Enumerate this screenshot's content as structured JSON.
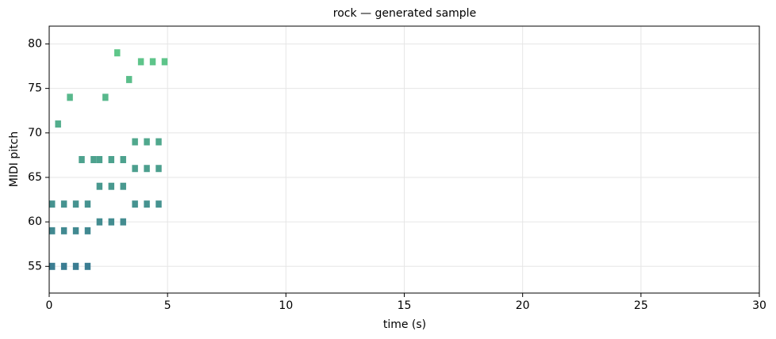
{
  "chart_data": {
    "type": "piano-roll",
    "title": "rock — generated sample",
    "x_label": "time (s)",
    "y_label": "MIDI pitch",
    "xlim": [
      0,
      30
    ],
    "ylim": [
      52,
      82
    ],
    "xticks": [
      0,
      5,
      10,
      15,
      20,
      25,
      30
    ],
    "yticks": [
      55,
      60,
      65,
      70,
      75,
      80
    ],
    "grid": true,
    "cmap": [
      "#3b7d92",
      "#5fc78a"
    ],
    "notes": [
      {
        "start": 0,
        "duration": 0.25,
        "pitch": 55
      },
      {
        "start": 0.5,
        "duration": 0.25,
        "pitch": 55
      },
      {
        "start": 1.0,
        "duration": 0.25,
        "pitch": 55
      },
      {
        "start": 1.5,
        "duration": 0.25,
        "pitch": 55
      },
      {
        "start": 0,
        "duration": 0.25,
        "pitch": 59
      },
      {
        "start": 0.5,
        "duration": 0.25,
        "pitch": 59
      },
      {
        "start": 1.0,
        "duration": 0.25,
        "pitch": 59
      },
      {
        "start": 1.5,
        "duration": 0.25,
        "pitch": 59
      },
      {
        "start": 0,
        "duration": 0.25,
        "pitch": 62
      },
      {
        "start": 0.5,
        "duration": 0.25,
        "pitch": 62
      },
      {
        "start": 1.0,
        "duration": 0.25,
        "pitch": 62
      },
      {
        "start": 1.5,
        "duration": 0.25,
        "pitch": 62
      },
      {
        "start": 2.0,
        "duration": 0.25,
        "pitch": 60
      },
      {
        "start": 2.5,
        "duration": 0.25,
        "pitch": 60
      },
      {
        "start": 3.0,
        "duration": 0.25,
        "pitch": 60
      },
      {
        "start": 2.0,
        "duration": 0.25,
        "pitch": 64
      },
      {
        "start": 2.5,
        "duration": 0.25,
        "pitch": 64
      },
      {
        "start": 3.0,
        "duration": 0.25,
        "pitch": 64
      },
      {
        "start": 3.5,
        "duration": 0.25,
        "pitch": 62
      },
      {
        "start": 4.0,
        "duration": 0.25,
        "pitch": 62
      },
      {
        "start": 4.5,
        "duration": 0.25,
        "pitch": 62
      },
      {
        "start": 3.5,
        "duration": 0.25,
        "pitch": 66
      },
      {
        "start": 4.0,
        "duration": 0.25,
        "pitch": 66
      },
      {
        "start": 4.5,
        "duration": 0.25,
        "pitch": 66
      },
      {
        "start": 3.5,
        "duration": 0.25,
        "pitch": 69
      },
      {
        "start": 4.0,
        "duration": 0.25,
        "pitch": 69
      },
      {
        "start": 4.5,
        "duration": 0.25,
        "pitch": 69
      },
      {
        "start": 1.25,
        "duration": 0.25,
        "pitch": 67
      },
      {
        "start": 1.75,
        "duration": 0.25,
        "pitch": 67
      },
      {
        "start": 2.0,
        "duration": 0.25,
        "pitch": 67
      },
      {
        "start": 2.5,
        "duration": 0.25,
        "pitch": 67
      },
      {
        "start": 3.0,
        "duration": 0.25,
        "pitch": 67
      },
      {
        "start": 0.25,
        "duration": 0.25,
        "pitch": 71
      },
      {
        "start": 0.75,
        "duration": 0.25,
        "pitch": 74
      },
      {
        "start": 2.25,
        "duration": 0.25,
        "pitch": 74
      },
      {
        "start": 3.25,
        "duration": 0.25,
        "pitch": 76
      },
      {
        "start": 2.75,
        "duration": 0.25,
        "pitch": 79
      },
      {
        "start": 3.75,
        "duration": 0.25,
        "pitch": 78
      },
      {
        "start": 4.25,
        "duration": 0.25,
        "pitch": 78
      },
      {
        "start": 4.75,
        "duration": 0.25,
        "pitch": 78
      }
    ]
  }
}
